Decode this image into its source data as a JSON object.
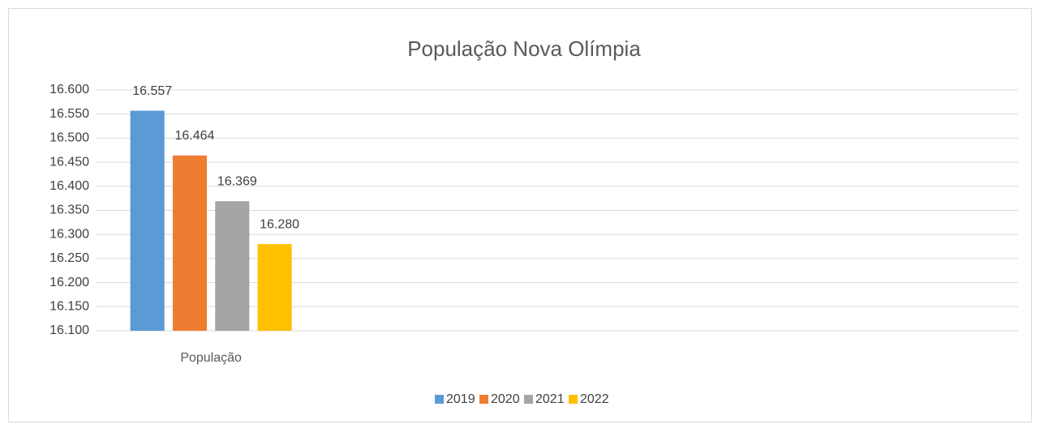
{
  "chart_data": {
    "type": "bar",
    "title": "População Nova Olímpia",
    "categories": [
      "População",
      null,
      null,
      null
    ],
    "series": [
      {
        "name": "2019",
        "color": "#5b9bd5",
        "values": [
          16557,
          null,
          null,
          null
        ],
        "value_labels": [
          "16.557",
          null,
          null,
          null
        ]
      },
      {
        "name": "2020",
        "color": "#ed7d31",
        "values": [
          16464,
          null,
          null,
          null
        ],
        "value_labels": [
          "16.464",
          null,
          null,
          null
        ]
      },
      {
        "name": "2021",
        "color": "#a5a5a5",
        "values": [
          16369,
          null,
          null,
          null
        ],
        "value_labels": [
          "16.369",
          null,
          null,
          null
        ]
      },
      {
        "name": "2022",
        "color": "#ffc000",
        "values": [
          16280,
          null,
          null,
          null
        ],
        "value_labels": [
          "16.280",
          null,
          null,
          null
        ]
      }
    ],
    "ylim": [
      16100,
      16600
    ],
    "yticks": [
      {
        "value": 16100,
        "label": "16.100"
      },
      {
        "value": 16150,
        "label": "16.150"
      },
      {
        "value": 16200,
        "label": "16.200"
      },
      {
        "value": 16250,
        "label": "16.250"
      },
      {
        "value": 16300,
        "label": "16.300"
      },
      {
        "value": 16350,
        "label": "16.350"
      },
      {
        "value": 16400,
        "label": "16.400"
      },
      {
        "value": 16450,
        "label": "16.450"
      },
      {
        "value": 16500,
        "label": "16.500"
      },
      {
        "value": 16550,
        "label": "16.550"
      },
      {
        "value": 16600,
        "label": "16.600"
      }
    ],
    "grid": true,
    "legend": "bottom"
  }
}
